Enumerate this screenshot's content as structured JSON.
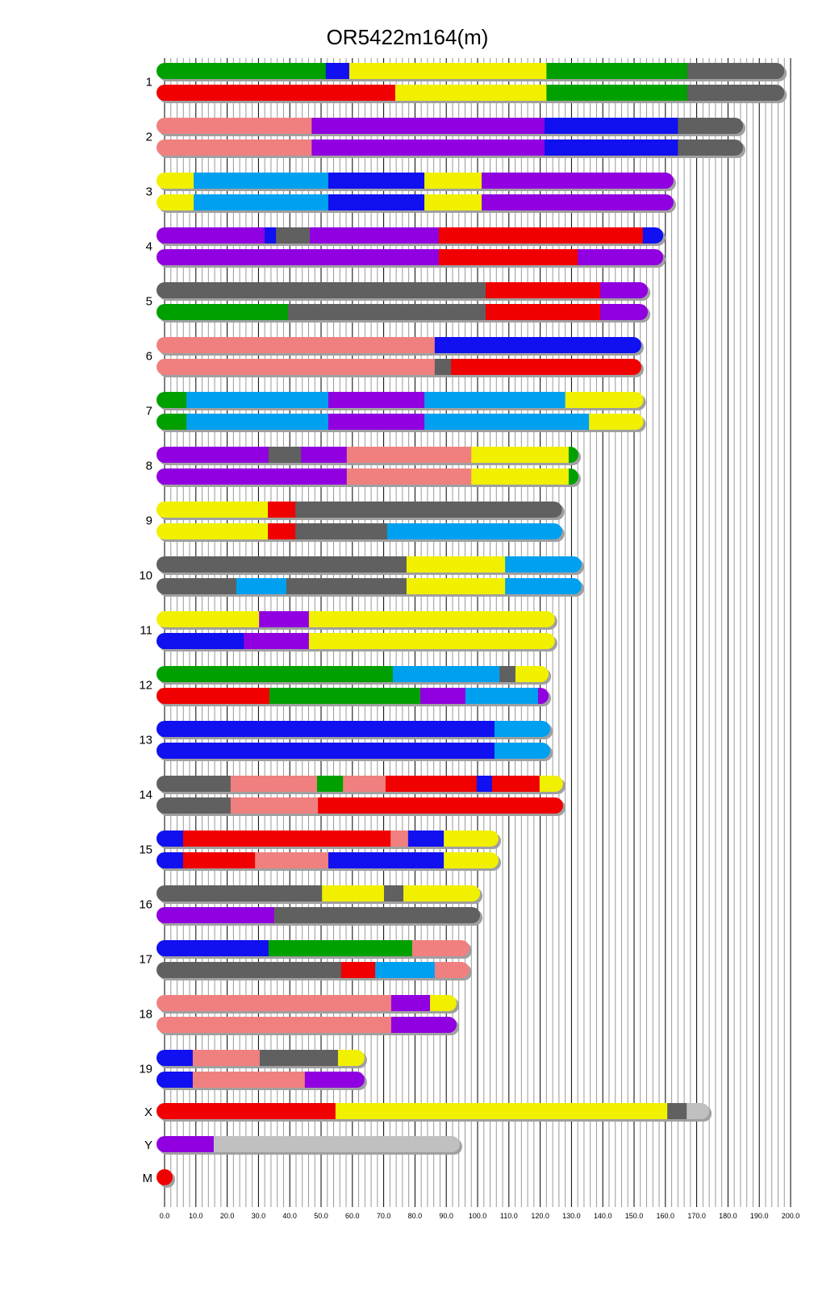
{
  "chart_data": {
    "type": "bar",
    "title": "OR5422m164(m)",
    "xlabel": "",
    "ylabel": "",
    "xlim": [
      0,
      200
    ],
    "x_ticks": [
      "0.0",
      "10.0",
      "20.0",
      "30.0",
      "40.0",
      "50.0",
      "60.0",
      "70.0",
      "80.0",
      "90.0",
      "100.0",
      "110.0",
      "120.0",
      "130.0",
      "140.0",
      "150.0",
      "160.0",
      "170.0",
      "180.0",
      "190.0",
      "200.0"
    ],
    "grid": true,
    "colors": {
      "green": "#00A000",
      "blue": "#1010F0",
      "yellow": "#F0F000",
      "red": "#F00000",
      "grey": "#606060",
      "salmon": "#F08080",
      "purple": "#9000E0",
      "skyblue": "#00A0F0",
      "lightgrey": "#C0C0C0"
    },
    "chromosomes": [
      {
        "name": "1",
        "haplotypes": [
          [
            [
              "green",
              51.5
            ],
            [
              "blue",
              59
            ],
            [
              "yellow",
              122
            ],
            [
              "green",
              167
            ],
            [
              "grey",
              198
            ]
          ],
          [
            [
              "red",
              73.7
            ],
            [
              "yellow",
              122
            ],
            [
              "green",
              167
            ],
            [
              "grey",
              198
            ]
          ]
        ]
      },
      {
        "name": "2",
        "haplotypes": [
          [
            [
              "salmon",
              47
            ],
            [
              "purple",
              121.4
            ],
            [
              "blue",
              164
            ],
            [
              "grey",
              184.8
            ]
          ],
          [
            [
              "salmon",
              47
            ],
            [
              "purple",
              121.4
            ],
            [
              "blue",
              164
            ],
            [
              "grey",
              184.8
            ]
          ]
        ]
      },
      {
        "name": "3",
        "haplotypes": [
          [
            [
              "yellow",
              9.3
            ],
            [
              "skyblue",
              52.3
            ],
            [
              "blue",
              83
            ],
            [
              "yellow",
              101.3
            ],
            [
              "purple",
              162.6
            ]
          ],
          [
            [
              "yellow",
              9.3
            ],
            [
              "skyblue",
              52.3
            ],
            [
              "blue",
              83
            ],
            [
              "yellow",
              101.3
            ],
            [
              "purple",
              162.6
            ]
          ]
        ]
      },
      {
        "name": "4",
        "haplotypes": [
          [
            [
              "purple",
              32
            ],
            [
              "blue",
              35.6
            ],
            [
              "grey",
              46.4
            ],
            [
              "purple",
              87.6
            ],
            [
              "red",
              152.8
            ],
            [
              "blue",
              159.3
            ]
          ],
          [
            [
              "purple",
              87.6
            ],
            [
              "red",
              132
            ],
            [
              "purple",
              159.3
            ]
          ]
        ]
      },
      {
        "name": "5",
        "haplotypes": [
          [
            [
              "grey",
              102.6
            ],
            [
              "red",
              139.2
            ],
            [
              "purple",
              154.4
            ]
          ],
          [
            [
              "green",
              39.4
            ],
            [
              "grey",
              102.6
            ],
            [
              "red",
              139.2
            ],
            [
              "purple",
              154.4
            ]
          ]
        ]
      },
      {
        "name": "6",
        "haplotypes": [
          [
            [
              "salmon",
              86.3
            ],
            [
              "blue",
              152.3
            ]
          ],
          [
            [
              "salmon",
              86.3
            ],
            [
              "grey",
              91.5
            ],
            [
              "red",
              152.3
            ]
          ]
        ]
      },
      {
        "name": "7",
        "haplotypes": [
          [
            [
              "green",
              7
            ],
            [
              "skyblue",
              52.3
            ],
            [
              "purple",
              83
            ],
            [
              "skyblue",
              128
            ],
            [
              "yellow",
              153
            ]
          ],
          [
            [
              "green",
              7
            ],
            [
              "skyblue",
              52.3
            ],
            [
              "purple",
              83
            ],
            [
              "skyblue",
              135.6
            ],
            [
              "yellow",
              153
            ]
          ]
        ]
      },
      {
        "name": "8",
        "haplotypes": [
          [
            [
              "purple",
              33.2
            ],
            [
              "grey",
              43.6
            ],
            [
              "purple",
              58.2
            ],
            [
              "salmon",
              98
            ],
            [
              "yellow",
              129.1
            ],
            [
              "green",
              132.2
            ]
          ],
          [
            [
              "purple",
              58.2
            ],
            [
              "salmon",
              98
            ],
            [
              "yellow",
              129.1
            ],
            [
              "green",
              132.2
            ]
          ]
        ]
      },
      {
        "name": "9",
        "haplotypes": [
          [
            [
              "yellow",
              33
            ],
            [
              "red",
              41.8
            ],
            [
              "grey",
              127
            ]
          ],
          [
            [
              "yellow",
              33
            ],
            [
              "red",
              41.8
            ],
            [
              "grey",
              71.1
            ],
            [
              "skyblue",
              127
            ]
          ]
        ]
      },
      {
        "name": "10",
        "haplotypes": [
          [
            [
              "grey",
              77.3
            ],
            [
              "yellow",
              108.8
            ],
            [
              "skyblue",
              133.2
            ]
          ],
          [
            [
              "grey",
              22.9
            ],
            [
              "skyblue",
              38.9
            ],
            [
              "grey",
              77.3
            ],
            [
              "yellow",
              108.8
            ],
            [
              "skyblue",
              133.2
            ]
          ]
        ]
      },
      {
        "name": "11",
        "haplotypes": [
          [
            [
              "yellow",
              30.2
            ],
            [
              "purple",
              46.1
            ],
            [
              "yellow",
              124.7
            ]
          ],
          [
            [
              "blue",
              25.3
            ],
            [
              "purple",
              46.1
            ],
            [
              "yellow",
              124.7
            ]
          ]
        ]
      },
      {
        "name": "12",
        "haplotypes": [
          [
            [
              "green",
              72.9
            ],
            [
              "skyblue",
              107
            ],
            [
              "grey",
              112.1
            ],
            [
              "yellow",
              122.7
            ]
          ],
          [
            [
              "red",
              33.5
            ],
            [
              "green",
              81.7
            ],
            [
              "purple",
              96.1
            ],
            [
              "skyblue",
              119.3
            ],
            [
              "purple",
              122.7
            ]
          ]
        ]
      },
      {
        "name": "13",
        "haplotypes": [
          [
            [
              "blue",
              105.4
            ],
            [
              "skyblue",
              123.2
            ]
          ],
          [
            [
              "blue",
              105.4
            ],
            [
              "skyblue",
              123.2
            ]
          ]
        ]
      },
      {
        "name": "14",
        "haplotypes": [
          [
            [
              "grey",
              21.1
            ],
            [
              "salmon",
              48.7
            ],
            [
              "green",
              57
            ],
            [
              "salmon",
              70.6
            ],
            [
              "red",
              99.7
            ],
            [
              "blue",
              104.6
            ],
            [
              "red",
              119.8
            ],
            [
              "yellow",
              127.3
            ]
          ],
          [
            [
              "grey",
              21.1
            ],
            [
              "salmon",
              49
            ],
            [
              "red",
              127.3
            ]
          ]
        ]
      },
      {
        "name": "15",
        "haplotypes": [
          [
            [
              "blue",
              5.9
            ],
            [
              "red",
              72.2
            ],
            [
              "salmon",
              77.8
            ],
            [
              "blue",
              89.2
            ],
            [
              "yellow",
              106.7
            ]
          ],
          [
            [
              "blue",
              5.9
            ],
            [
              "red",
              28.9
            ],
            [
              "salmon",
              52.3
            ],
            [
              "blue",
              89.2
            ],
            [
              "yellow",
              106.7
            ]
          ]
        ]
      },
      {
        "name": "16",
        "haplotypes": [
          [
            [
              "grey",
              50.3
            ],
            [
              "yellow",
              70.1
            ],
            [
              "grey",
              76.3
            ],
            [
              "yellow",
              100.8
            ]
          ],
          [
            [
              "purple",
              35
            ],
            [
              "grey",
              100.8
            ]
          ]
        ]
      },
      {
        "name": "17",
        "haplotypes": [
          [
            [
              "blue",
              33.2
            ],
            [
              "green",
              79.1
            ],
            [
              "salmon",
              97.4
            ]
          ],
          [
            [
              "grey",
              56.4
            ],
            [
              "red",
              67.3
            ],
            [
              "skyblue",
              86.3
            ],
            [
              "salmon",
              97.4
            ]
          ]
        ]
      },
      {
        "name": "18",
        "haplotypes": [
          [
            [
              "salmon",
              72.4
            ],
            [
              "purple",
              84.8
            ],
            [
              "yellow",
              93.3
            ]
          ],
          [
            [
              "salmon",
              72.4
            ],
            [
              "purple",
              93.3
            ]
          ]
        ]
      },
      {
        "name": "19",
        "haplotypes": [
          [
            [
              "blue",
              9
            ],
            [
              "salmon",
              30.4
            ],
            [
              "grey",
              55.4
            ],
            [
              "yellow",
              63.9
            ]
          ],
          [
            [
              "blue",
              9
            ],
            [
              "salmon",
              44.8
            ],
            [
              "purple",
              63.9
            ]
          ]
        ]
      },
      {
        "name": "X",
        "haplotypes": [
          [
            [
              "red",
              54.6
            ],
            [
              "yellow",
              160.6
            ],
            [
              "grey",
              166.8
            ],
            [
              "lightgrey",
              174
            ]
          ]
        ]
      },
      {
        "name": "Y",
        "haplotypes": [
          [
            [
              "purple",
              15.7
            ],
            [
              "lightgrey",
              94.3
            ]
          ]
        ]
      },
      {
        "name": "M",
        "haplotypes": [
          [
            [
              "red",
              0.02
            ]
          ]
        ]
      }
    ]
  }
}
